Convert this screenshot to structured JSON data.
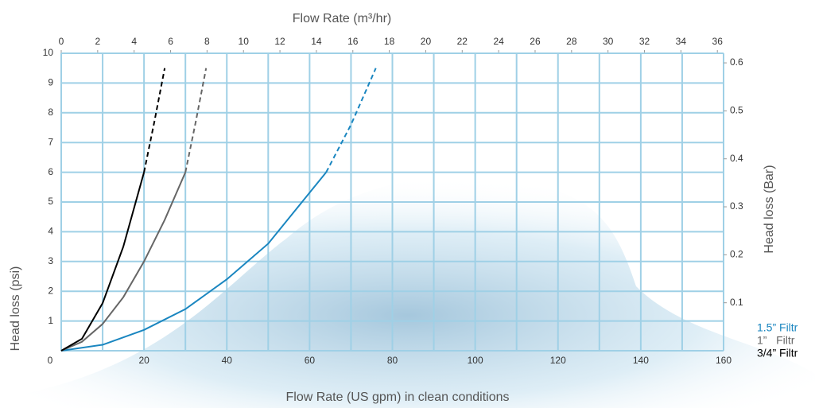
{
  "chart_data": {
    "type": "line",
    "top_axis_label": "Flow Rate (m³/hr)",
    "x_label": "Flow Rate (US gpm) in clean conditions",
    "y_label": "Head loss (psi)",
    "y2_label": "Head loss (Bar)",
    "xlim": [
      0,
      160
    ],
    "xticks": [
      0,
      20,
      40,
      60,
      80,
      100,
      120,
      140,
      160
    ],
    "xgrid": [
      10,
      30,
      50,
      70,
      90,
      110,
      130,
      150
    ],
    "x2lim": [
      0,
      36.34
    ],
    "x2ticks": [
      0,
      2,
      4,
      6,
      8,
      10,
      12,
      14,
      16,
      18,
      20,
      22,
      24,
      26,
      28,
      30,
      32,
      34,
      36
    ],
    "ylim": [
      0,
      10
    ],
    "yticks": [
      1,
      2,
      3,
      4,
      5,
      6,
      7,
      8,
      9,
      10
    ],
    "y2lim": [
      0,
      0.62
    ],
    "y2ticks": [
      0.1,
      0.2,
      0.3,
      0.4,
      0.5,
      0.6
    ],
    "grid": true,
    "grid_color": "#9fd0e6",
    "legend": "bottom-right",
    "series": [
      {
        "name": "1.5” Filtr",
        "color": "#1a86c0",
        "x": [
          0,
          10,
          20,
          30,
          40,
          50,
          64
        ],
        "values": [
          0,
          0.2,
          0.7,
          1.4,
          2.4,
          3.6,
          6
        ],
        "extrapolated": {
          "x": [
            64,
            70,
            76
          ],
          "values": [
            6,
            7.6,
            9.5
          ]
        }
      },
      {
        "name": "1”   Filtr",
        "color": "#666666",
        "x": [
          0,
          5,
          10,
          15,
          20,
          25,
          30
        ],
        "values": [
          0,
          0.3,
          0.9,
          1.8,
          3,
          4.4,
          6
        ],
        "extrapolated": {
          "x": [
            30,
            32.5,
            35
          ],
          "values": [
            6,
            7.7,
            9.5
          ]
        }
      },
      {
        "name": "3/4” Filtr",
        "color": "#000000",
        "x": [
          0,
          5,
          10,
          15,
          20
        ],
        "values": [
          0,
          0.4,
          1.6,
          3.5,
          6
        ],
        "extrapolated": {
          "x": [
            20,
            22.5,
            25
          ],
          "values": [
            6,
            7.7,
            9.5
          ]
        }
      }
    ]
  }
}
